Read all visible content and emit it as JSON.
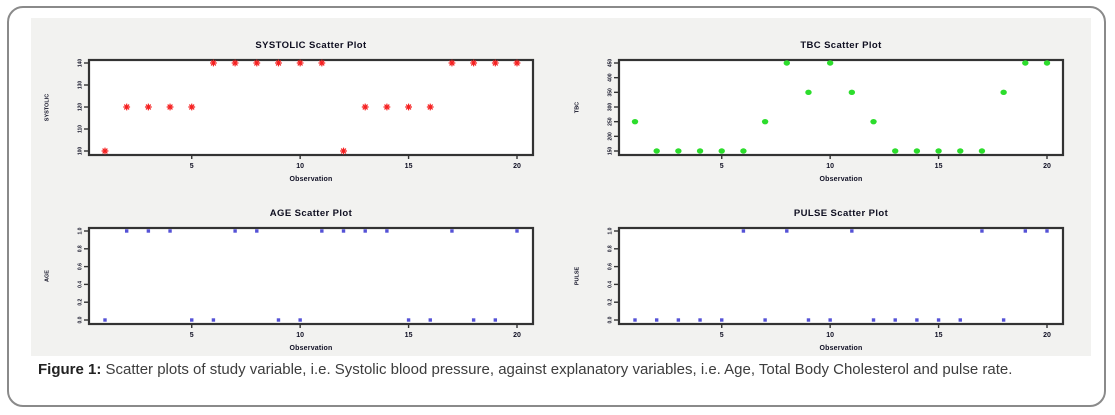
{
  "caption": {
    "label": "Figure 1:",
    "text": " Scatter plots of study variable, i.e. Systolic blood pressure, against explanatory variables, i.e. Age, Total Body Cholesterol and pulse rate."
  },
  "figure": {
    "background": "#f2f2f0",
    "plot_background": "#ffffff",
    "axis_color": "#333333",
    "text_color": "#101024"
  },
  "chart_data": [
    {
      "type": "scatter",
      "title": "SYSTOLIC Scatter Plot",
      "xlabel": "Observation",
      "ylabel": "SYSTOLIC",
      "marker": "star",
      "color": "#f52020",
      "xlim": [
        1,
        20
      ],
      "xticks": [
        "5",
        "10",
        "15",
        "20"
      ],
      "yticks": [
        "100",
        "110",
        "120",
        "130",
        "140"
      ],
      "x": [
        1,
        2,
        3,
        4,
        5,
        6,
        7,
        8,
        9,
        10,
        11,
        12,
        13,
        14,
        15,
        16,
        17,
        18,
        19,
        20
      ],
      "y": [
        100,
        120,
        120,
        120,
        120,
        140,
        140,
        140,
        140,
        140,
        140,
        100,
        120,
        120,
        120,
        120,
        140,
        140,
        140,
        140
      ]
    },
    {
      "type": "scatter",
      "title": "TBC Scatter Plot",
      "xlabel": "Observation",
      "ylabel": "TBC",
      "marker": "circle",
      "color": "#2cdd2c",
      "xlim": [
        1,
        20
      ],
      "xticks": [
        "5",
        "10",
        "15",
        "20"
      ],
      "yticks": [
        "150",
        "200",
        "250",
        "300",
        "350",
        "400",
        "450"
      ],
      "x": [
        1,
        2,
        3,
        4,
        5,
        6,
        7,
        8,
        9,
        10,
        11,
        12,
        13,
        14,
        15,
        16,
        17,
        18,
        19,
        20
      ],
      "y": [
        250,
        150,
        150,
        150,
        150,
        150,
        250,
        450,
        350,
        450,
        350,
        250,
        150,
        150,
        150,
        150,
        150,
        350,
        450,
        450
      ]
    },
    {
      "type": "scatter",
      "title": "AGE Scatter Plot",
      "xlabel": "Observation",
      "ylabel": "AGE",
      "marker": "square",
      "color": "#5552d6",
      "xlim": [
        1,
        20
      ],
      "xticks": [
        "5",
        "10",
        "15",
        "20"
      ],
      "yticks": [
        "0.0",
        "0.2",
        "0.4",
        "0.6",
        "0.8",
        "1.0"
      ],
      "x": [
        1,
        2,
        3,
        4,
        5,
        6,
        7,
        8,
        9,
        10,
        11,
        12,
        13,
        14,
        15,
        16,
        17,
        18,
        19,
        20
      ],
      "y": [
        0,
        1,
        1,
        1,
        0,
        0,
        1,
        1,
        0,
        0,
        1,
        1,
        1,
        1,
        0,
        0,
        1,
        0,
        0,
        1
      ]
    },
    {
      "type": "scatter",
      "title": "PULSE Scatter Plot",
      "xlabel": "Observation",
      "ylabel": "PULSE",
      "marker": "square",
      "color": "#5552d6",
      "xlim": [
        1,
        20
      ],
      "xticks": [
        "5",
        "10",
        "15",
        "20"
      ],
      "yticks": [
        "0.0",
        "0.2",
        "0.4",
        "0.6",
        "0.8",
        "1.0"
      ],
      "x": [
        1,
        2,
        3,
        4,
        5,
        6,
        7,
        8,
        9,
        10,
        11,
        12,
        13,
        14,
        15,
        16,
        17,
        18,
        19,
        20
      ],
      "y": [
        0,
        0,
        0,
        0,
        0,
        1,
        0,
        1,
        0,
        0,
        1,
        0,
        0,
        0,
        0,
        0,
        1,
        0,
        1,
        1
      ]
    }
  ]
}
